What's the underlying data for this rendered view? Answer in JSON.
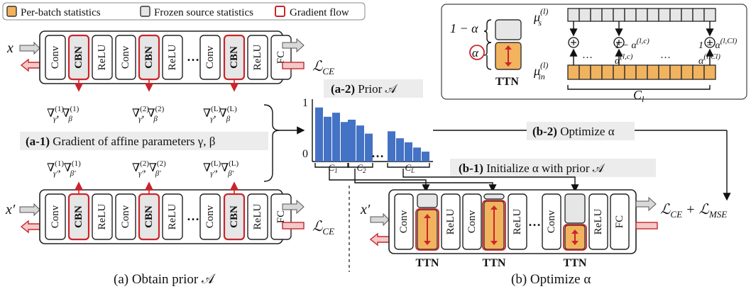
{
  "legend": {
    "per_batch": "Per-batch statistics",
    "frozen": "Frozen source statistics",
    "gradient": "Gradient flow"
  },
  "layers": {
    "conv": "Conv",
    "cbn": "CBN",
    "relu": "ReLU",
    "fc": "FC",
    "dots": "…"
  },
  "inputs": {
    "x": "x",
    "x_prime": "x′",
    "loss_ce": "ℒ",
    "loss_ce_sub": "CE",
    "loss_total": "ℒ",
    "loss_total_sub": "CE",
    "loss_plus": " + ℒ",
    "loss_mse_sub": "MSE"
  },
  "gradients": {
    "top": [
      "∇(1)γ , ∇(1)β",
      "∇(2)γ , ∇(2)β",
      "∇(L)γ , ∇(L)β"
    ],
    "bottom": [
      "∇(1)γ′ , ∇(1)β′",
      "∇(2)γ′ , ∇(2)β′",
      "∇(L)γ′ , ∇(L)β′"
    ]
  },
  "steps": {
    "a1_tag": "(a-1)",
    "a1_text": " Gradient of affine parameters γ, β",
    "a2_tag": "(a-2)",
    "a2_text": " Prior 𝒜",
    "b1_tag": "(b-1)",
    "b1_text": " Initialize α with prior 𝒜",
    "b2_tag": "(b-2)",
    "b2_text": " Optimize α"
  },
  "chart_data": {
    "type": "bar",
    "ylim": [
      0,
      1
    ],
    "y_ticks": [
      "1",
      "0"
    ],
    "groups": [
      "C1",
      "C2",
      "CL"
    ],
    "group_labels": [
      "C",
      "C",
      "C"
    ],
    "group_subs": [
      "1",
      "2",
      "L"
    ],
    "series": [
      {
        "values": [
          0.93,
          0.77,
          0.84,
          0.68
        ]
      },
      {
        "values": [
          0.72,
          0.62,
          0.48
        ]
      },
      {
        "values": [
          0.52,
          0.4,
          0.33,
          0.24,
          0.17
        ]
      }
    ],
    "dots": "…",
    "color": "#4472c4"
  },
  "inset": {
    "one_minus_alpha": "1 − α",
    "alpha": "α",
    "ttn": "TTN",
    "mu_s": "μ",
    "mu_s_sub": "s",
    "mu_s_sup": "(l)",
    "mu_in": "μ",
    "mu_in_sub": "in",
    "mu_in_sup": "(l)",
    "coef_1": "1 − α",
    "coef_1_sup": "(l,c)",
    "coef_2": "1 − α",
    "coef_2_sup": "(l,Cl)",
    "alpha_1": "α",
    "alpha_1_sup": "(l,c)",
    "alpha_2": "α",
    "alpha_2_sup": "(l,Cl)",
    "dots": "…",
    "cl": "C",
    "cl_sub": "l"
  },
  "ttn_labels": [
    "TTN",
    "TTN",
    "TTN"
  ],
  "captions": {
    "a": "(a) Obtain prior 𝒜",
    "b": "(b) Optimize α"
  }
}
